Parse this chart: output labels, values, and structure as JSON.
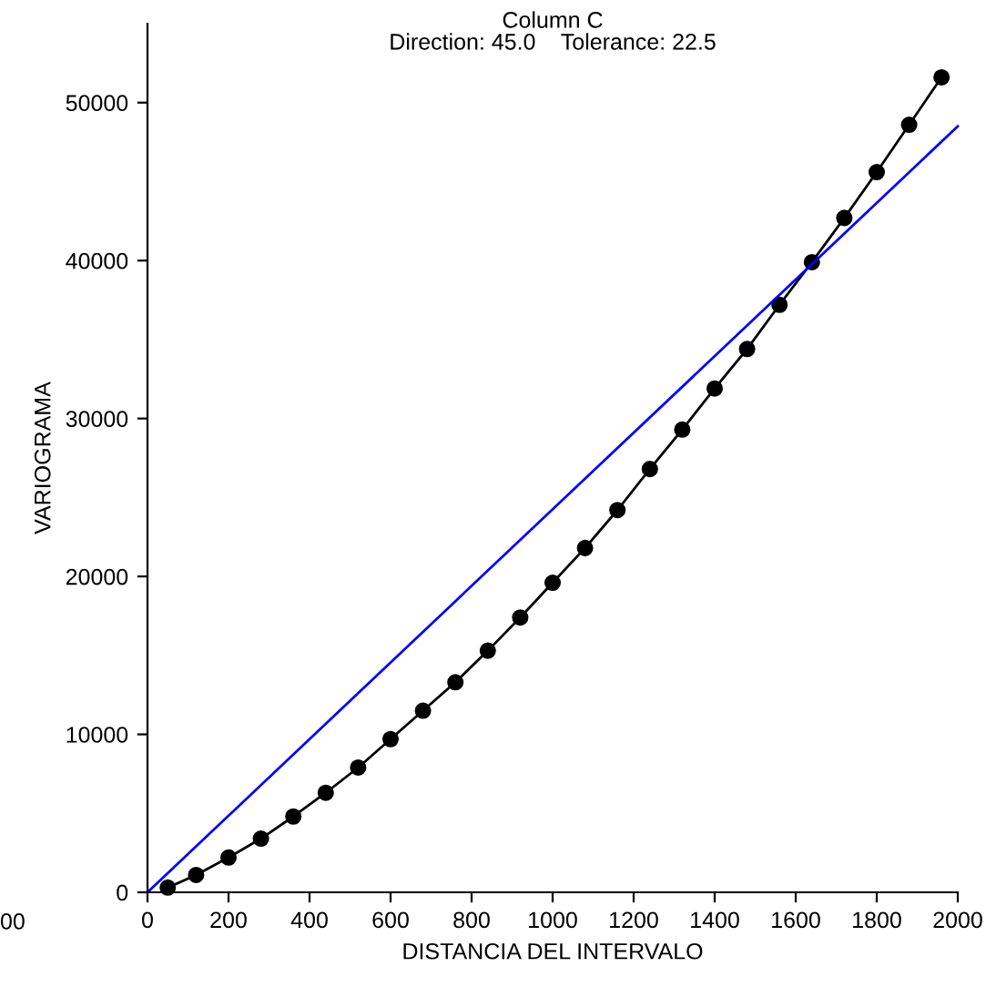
{
  "chart_data": {
    "type": "line",
    "title": "Column C",
    "subtitle": "Direction: 45.0    Tolerance: 22.5",
    "xlabel": "DISTANCIA DEL INTERVALO",
    "ylabel": "VARIOGRAMA",
    "series": [
      {
        "color": "#000000",
        "marker": "circle",
        "x": [
          50,
          120,
          200,
          280,
          360,
          440,
          520,
          600,
          680,
          760,
          840,
          920,
          1000,
          1080,
          1160,
          1240,
          1320,
          1400,
          1480,
          1560,
          1640,
          1720,
          1800,
          1880,
          1960
        ],
        "values": [
          300,
          1100,
          2200,
          3400,
          4800,
          6300,
          7900,
          9700,
          11500,
          13300,
          15300,
          17400,
          19600,
          21800,
          24200,
          26800,
          29300,
          31900,
          34400,
          37200,
          39900,
          42700,
          45600,
          48600,
          51600
        ]
      },
      {
        "color": "#0000ff",
        "marker": "none",
        "x": [
          0,
          2000
        ],
        "values": [
          0,
          48500
        ]
      }
    ],
    "xlim": [
      0,
      2000
    ],
    "xticks": [
      0,
      200,
      400,
      600,
      800,
      1000,
      1200,
      1400,
      1600,
      1800,
      2000
    ],
    "ylim": [
      0,
      55000
    ],
    "yticks": [
      0,
      10000,
      20000,
      30000,
      40000,
      50000
    ],
    "grid": false,
    "legend": false,
    "annotations": [
      "00"
    ]
  }
}
